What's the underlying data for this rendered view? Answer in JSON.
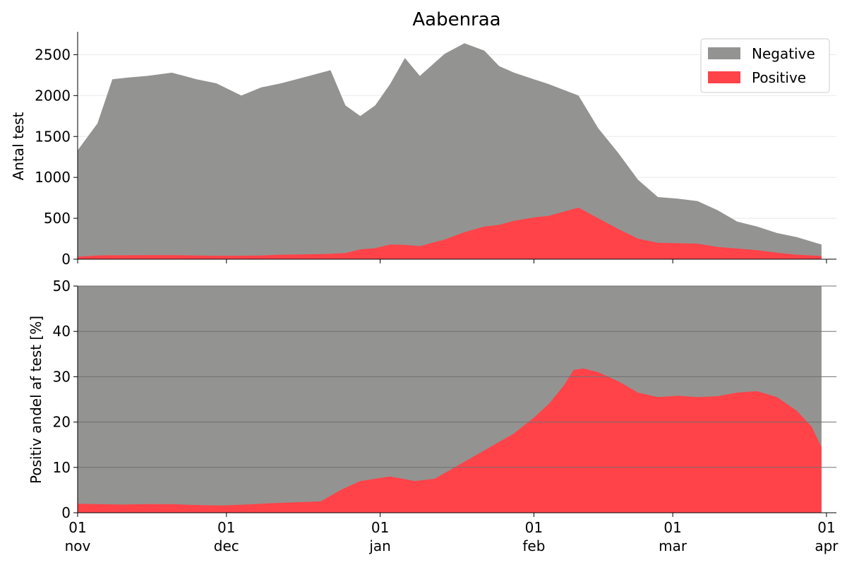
{
  "colors": {
    "negative": "#939491",
    "positive": "#ff4349",
    "grid_top": "#e9e9e9",
    "grid_bottom": "#707070"
  },
  "chart_data": [
    {
      "type": "area",
      "title": "Aabenraa",
      "ylabel": "Antal test",
      "xlabel": "",
      "ylim": [
        0,
        2780
      ],
      "yticks": [
        0,
        500,
        1000,
        1500,
        2000,
        2500
      ],
      "legend_position": "top-right",
      "grid": "horizontal",
      "stacked": false,
      "x": [
        "2020-11-01",
        "2020-11-05",
        "2020-11-08",
        "2020-11-11",
        "2020-11-15",
        "2020-11-20",
        "2020-11-25",
        "2020-11-29",
        "2020-12-04",
        "2020-12-08",
        "2020-12-12",
        "2020-12-17",
        "2020-12-22",
        "2020-12-25",
        "2020-12-28",
        "2020-12-31",
        "2021-01-03",
        "2021-01-06",
        "2021-01-09",
        "2021-01-14",
        "2021-01-18",
        "2021-01-22",
        "2021-01-25",
        "2021-01-28",
        "2021-02-01",
        "2021-02-04",
        "2021-02-07",
        "2021-02-10",
        "2021-02-14",
        "2021-02-18",
        "2021-02-22",
        "2021-02-26",
        "2021-03-02",
        "2021-03-06",
        "2021-03-10",
        "2021-03-14",
        "2021-03-18",
        "2021-03-22",
        "2021-03-26",
        "2021-03-31"
      ],
      "series": [
        {
          "name": "Negative",
          "values": [
            1330,
            1660,
            2200,
            2220,
            2240,
            2280,
            2200,
            2150,
            2000,
            2100,
            2150,
            2230,
            2310,
            1880,
            1750,
            1880,
            2140,
            2460,
            2240,
            2510,
            2640,
            2550,
            2360,
            2280,
            2200,
            2140,
            2070,
            2000,
            1600,
            1300,
            970,
            760,
            740,
            710,
            600,
            460,
            400,
            320,
            270,
            180
          ]
        },
        {
          "name": "Positive",
          "values": [
            30,
            45,
            48,
            48,
            50,
            50,
            45,
            42,
            42,
            46,
            55,
            60,
            66,
            75,
            120,
            135,
            180,
            175,
            160,
            240,
            330,
            400,
            420,
            470,
            510,
            530,
            580,
            630,
            500,
            370,
            250,
            200,
            195,
            190,
            150,
            130,
            110,
            80,
            55,
            40
          ]
        }
      ]
    },
    {
      "type": "area",
      "title": "",
      "ylabel": "Positiv andel af test [%]",
      "xlabel": "",
      "ylim": [
        0,
        50
      ],
      "yticks": [
        0,
        10,
        20,
        30,
        40,
        50
      ],
      "grid": "horizontal",
      "x": [
        "2020-11-01",
        "2020-11-05",
        "2020-11-10",
        "2020-11-15",
        "2020-11-20",
        "2020-11-25",
        "2020-11-30",
        "2020-12-05",
        "2020-12-10",
        "2020-12-15",
        "2020-12-20",
        "2020-12-24",
        "2020-12-28",
        "2020-12-31",
        "2021-01-03",
        "2021-01-08",
        "2021-01-12",
        "2021-01-16",
        "2021-01-20",
        "2021-01-24",
        "2021-01-28",
        "2021-02-01",
        "2021-02-04",
        "2021-02-07",
        "2021-02-09",
        "2021-02-11",
        "2021-02-14",
        "2021-02-18",
        "2021-02-22",
        "2021-02-26",
        "2021-03-02",
        "2021-03-06",
        "2021-03-10",
        "2021-03-14",
        "2021-03-18",
        "2021-03-22",
        "2021-03-26",
        "2021-03-29",
        "2021-03-31"
      ],
      "series": [
        {
          "name": "Positive",
          "values": [
            2.0,
            1.9,
            1.8,
            1.9,
            1.9,
            1.7,
            1.6,
            1.8,
            2.1,
            2.3,
            2.5,
            5.0,
            7.0,
            7.5,
            8.0,
            7.0,
            7.5,
            10.0,
            12.5,
            15.0,
            17.5,
            21.0,
            24.0,
            28.0,
            31.5,
            31.8,
            31.0,
            29.0,
            26.5,
            25.5,
            25.8,
            25.5,
            25.7,
            26.5,
            26.8,
            25.5,
            22.5,
            19.0,
            14.5
          ]
        }
      ]
    }
  ],
  "x_axis": {
    "ticks": [
      {
        "date": "2020-11-01",
        "day": "01",
        "month": "nov"
      },
      {
        "date": "2020-12-01",
        "day": "01",
        "month": "dec"
      },
      {
        "date": "2021-01-01",
        "day": "01",
        "month": "jan"
      },
      {
        "date": "2021-02-01",
        "day": "01",
        "month": "feb"
      },
      {
        "date": "2021-03-01",
        "day": "01",
        "month": "mar"
      },
      {
        "date": "2021-04-01",
        "day": "01",
        "month": "apr"
      }
    ],
    "range": [
      "2020-11-01",
      "2021-04-03"
    ]
  },
  "legend": [
    {
      "label": "Negative",
      "color_key": "negative"
    },
    {
      "label": "Positive",
      "color_key": "positive"
    }
  ]
}
